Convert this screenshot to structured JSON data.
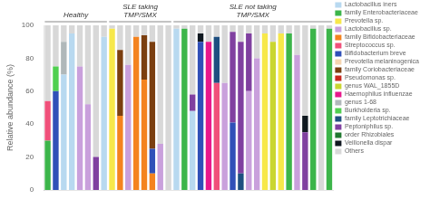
{
  "chart_data": {
    "type": "bar",
    "stacked": true,
    "ylabel": "Relative abundance (%)",
    "categories": [
      null,
      null,
      null,
      null,
      null,
      null,
      null,
      null,
      null,
      null,
      null,
      null,
      null,
      null,
      null,
      null,
      null,
      null,
      null,
      null,
      null,
      null,
      null,
      null,
      null,
      null,
      null,
      null,
      null,
      null,
      null,
      null,
      null,
      null,
      null,
      null
    ],
    "annotations": [
      {
        "text": "Healthy",
        "from": 0,
        "to": 7
      },
      {
        "text": "SLE taking\nTMP/SMX",
        "from": 8,
        "to": 15
      },
      {
        "text": "SLE not taking\nTMP/SMX",
        "from": 16,
        "to": 35
      }
    ],
    "ylim": [
      0,
      100
    ],
    "yticks": [
      0,
      20,
      40,
      60,
      80,
      100
    ],
    "grid": false,
    "legend": "right",
    "tick_labels": "y",
    "series": [
      {
        "name": "Lactobacillus iners",
        "color": "#b8d9f0",
        "values": [
          0,
          0,
          70,
          95,
          0,
          0,
          0,
          93,
          0,
          0,
          0,
          0,
          0,
          0,
          0,
          0,
          98,
          0,
          48,
          0,
          0,
          0,
          0,
          0,
          0,
          0,
          0,
          0,
          0,
          0,
          0,
          0,
          0,
          0,
          0,
          0
        ]
      },
      {
        "name": "family Enterobacteriaceae",
        "color": "#3cb54a",
        "values": [
          30,
          0,
          0,
          0,
          0,
          0,
          0,
          0,
          0,
          0,
          0,
          0,
          0,
          0,
          0,
          0,
          0,
          98,
          0,
          0,
          0,
          0,
          0,
          0,
          0,
          0,
          0,
          0,
          0,
          0,
          95,
          0,
          0,
          98,
          0,
          98
        ]
      },
      {
        "name": "Prevotella sp.",
        "color": "#f7e84a",
        "values": [
          0,
          0,
          0,
          0,
          0,
          0,
          0,
          0,
          98,
          0,
          0,
          0,
          0,
          0,
          0,
          0,
          0,
          0,
          0,
          0,
          0,
          0,
          0,
          0,
          0,
          0,
          0,
          95,
          0,
          95,
          0,
          0,
          0,
          0,
          0,
          0
        ]
      },
      {
        "name": "Lactobacillus sp.",
        "color": "#c9a0dc",
        "values": [
          0,
          0,
          0,
          0,
          75,
          52,
          0,
          0,
          0,
          0,
          76,
          0,
          0,
          0,
          28,
          0,
          0,
          0,
          0,
          0,
          0,
          0,
          65,
          0,
          0,
          60,
          80,
          0,
          0,
          0,
          0,
          82,
          0,
          0,
          0,
          0
        ]
      },
      {
        "name": "family Bifidobacteriaceae",
        "color": "#f4831f",
        "values": [
          0,
          0,
          0,
          0,
          0,
          0,
          0,
          0,
          0,
          45,
          0,
          93,
          67,
          10,
          0,
          0,
          0,
          0,
          0,
          0,
          0,
          0,
          0,
          0,
          0,
          0,
          0,
          0,
          0,
          0,
          0,
          0,
          0,
          0,
          0,
          0
        ]
      },
      {
        "name": "Streptococcus sp.",
        "color": "#f0507a",
        "values": [
          24,
          0,
          0,
          0,
          0,
          0,
          0,
          0,
          0,
          0,
          0,
          0,
          0,
          0,
          0,
          0,
          0,
          0,
          0,
          0,
          0,
          65,
          0,
          0,
          0,
          0,
          0,
          0,
          0,
          0,
          0,
          0,
          0,
          0,
          0,
          0
        ]
      },
      {
        "name": "Bifidobacterium breve",
        "color": "#3050b8",
        "values": [
          0,
          60,
          0,
          0,
          0,
          0,
          0,
          0,
          0,
          0,
          0,
          0,
          0,
          15,
          0,
          0,
          0,
          0,
          0,
          90,
          0,
          0,
          0,
          41,
          0,
          0,
          0,
          0,
          0,
          0,
          0,
          0,
          0,
          0,
          0,
          0
        ]
      },
      {
        "name": "Prevotella melaninogenica",
        "color": "#f5d5b0",
        "values": [
          0,
          0,
          0,
          0,
          0,
          0,
          0,
          0,
          0,
          0,
          0,
          0,
          0,
          0,
          0,
          0,
          0,
          0,
          0,
          0,
          0,
          0,
          0,
          0,
          0,
          0,
          0,
          0,
          0,
          0,
          0,
          0,
          0,
          0,
          0,
          0
        ]
      },
      {
        "name": "family Coriobacteriaceae",
        "color": "#7b3f10",
        "values": [
          0,
          0,
          0,
          0,
          0,
          0,
          0,
          0,
          0,
          40,
          0,
          0,
          27,
          65,
          0,
          0,
          0,
          0,
          0,
          0,
          0,
          0,
          0,
          0,
          0,
          0,
          0,
          0,
          0,
          0,
          0,
          0,
          0,
          0,
          0,
          0
        ]
      },
      {
        "name": "Pseudomonas sp.",
        "color": "#c8281e",
        "values": [
          0,
          0,
          0,
          0,
          0,
          0,
          0,
          0,
          0,
          0,
          0,
          0,
          0,
          0,
          0,
          0,
          0,
          0,
          0,
          0,
          0,
          0,
          0,
          0,
          0,
          0,
          0,
          0,
          0,
          0,
          0,
          0,
          0,
          0,
          0,
          0
        ]
      },
      {
        "name": "genus WAL_1855D",
        "color": "#cad630",
        "values": [
          0,
          0,
          0,
          0,
          0,
          0,
          0,
          0,
          0,
          0,
          0,
          0,
          0,
          0,
          0,
          0,
          0,
          0,
          0,
          0,
          0,
          0,
          0,
          0,
          0,
          0,
          0,
          0,
          90,
          0,
          0,
          0,
          0,
          0,
          0,
          0
        ]
      },
      {
        "name": "Haemophilus influenzae",
        "color": "#e8188c",
        "values": [
          0,
          0,
          0,
          0,
          0,
          0,
          0,
          0,
          0,
          0,
          0,
          0,
          0,
          0,
          0,
          0,
          0,
          0,
          0,
          0,
          90,
          0,
          0,
          0,
          0,
          0,
          0,
          0,
          0,
          0,
          0,
          0,
          0,
          0,
          0,
          0
        ]
      },
      {
        "name": "genus 1-68",
        "color": "#b0b8ba",
        "values": [
          0,
          0,
          20,
          0,
          0,
          0,
          0,
          0,
          0,
          0,
          0,
          0,
          0,
          0,
          0,
          0,
          0,
          0,
          0,
          0,
          0,
          0,
          0,
          0,
          0,
          0,
          0,
          0,
          0,
          0,
          0,
          0,
          0,
          0,
          0,
          0
        ]
      },
      {
        "name": "Burkholderia sp.",
        "color": "#50d050",
        "values": [
          0,
          15,
          0,
          0,
          0,
          0,
          0,
          0,
          0,
          0,
          0,
          0,
          0,
          0,
          0,
          0,
          0,
          0,
          0,
          0,
          0,
          0,
          0,
          0,
          0,
          0,
          0,
          0,
          0,
          0,
          0,
          0,
          0,
          0,
          0,
          0
        ]
      },
      {
        "name": "family Leptotrichiaceae",
        "color": "#1e4f80",
        "values": [
          0,
          0,
          0,
          0,
          0,
          0,
          0,
          0,
          0,
          0,
          0,
          0,
          0,
          0,
          0,
          0,
          0,
          0,
          0,
          0,
          0,
          28,
          0,
          0,
          10,
          0,
          0,
          0,
          0,
          0,
          0,
          0,
          0,
          0,
          0,
          0
        ]
      },
      {
        "name": "Peptoniphilus sp.",
        "color": "#8040a0",
        "values": [
          0,
          0,
          0,
          0,
          0,
          0,
          20,
          0,
          0,
          0,
          0,
          0,
          0,
          0,
          0,
          0,
          0,
          0,
          10,
          0,
          0,
          0,
          0,
          55,
          80,
          35,
          0,
          0,
          0,
          0,
          0,
          0,
          35,
          0,
          0,
          0
        ]
      },
      {
        "name": "order Rhizobiales",
        "color": "#207830",
        "values": [
          0,
          0,
          0,
          0,
          0,
          0,
          0,
          0,
          0,
          0,
          0,
          0,
          0,
          0,
          0,
          0,
          0,
          0,
          0,
          0,
          0,
          0,
          0,
          0,
          0,
          0,
          0,
          0,
          0,
          0,
          0,
          0,
          0,
          0,
          0,
          0
        ]
      },
      {
        "name": "Veillonella dispar",
        "color": "#101820",
        "values": [
          0,
          0,
          0,
          0,
          0,
          0,
          0,
          0,
          0,
          0,
          0,
          0,
          0,
          0,
          0,
          0,
          0,
          0,
          0,
          5,
          0,
          0,
          0,
          0,
          0,
          0,
          0,
          0,
          0,
          0,
          0,
          0,
          10,
          0,
          0,
          0
        ]
      },
      {
        "name": "Others",
        "color": "#d8d8d8",
        "values": [
          46,
          25,
          10,
          5,
          25,
          48,
          80,
          7,
          2,
          15,
          24,
          7,
          6,
          10,
          72,
          100,
          2,
          2,
          42,
          5,
          10,
          7,
          35,
          4,
          10,
          5,
          20,
          5,
          10,
          5,
          5,
          18,
          55,
          2,
          100,
          2
        ]
      }
    ]
  }
}
